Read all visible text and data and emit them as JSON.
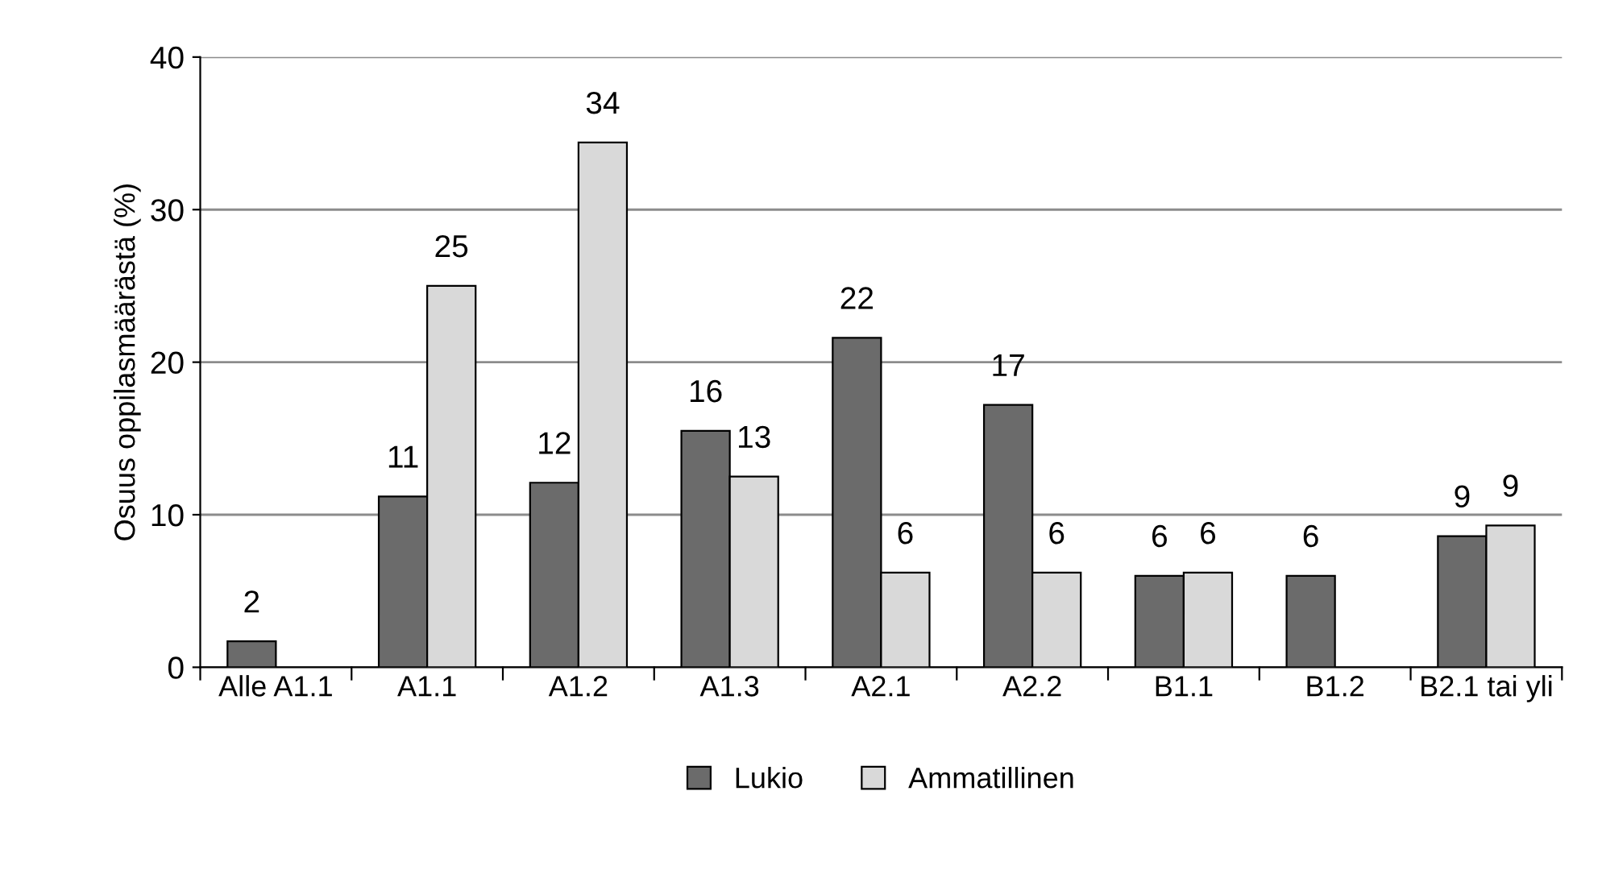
{
  "chart_data": {
    "type": "bar",
    "ylabel": "Osuus oppilasmäärästä (%)",
    "categories": [
      "Alle A1.1",
      "A1.1",
      "A1.2",
      "A1.3",
      "A2.1",
      "A2.2",
      "B1.1",
      "B1.2",
      "B2.1 tai yli"
    ],
    "series": [
      {
        "name": "Lukio",
        "color": "#6b6b6b",
        "values": [
          1.7,
          11.2,
          12.1,
          15.5,
          21.6,
          17.2,
          6.0,
          6.0,
          8.6
        ],
        "value_labels": [
          "2",
          "11",
          "12",
          "16",
          "22",
          "17",
          "6",
          "6",
          "9"
        ]
      },
      {
        "name": "Ammatillinen",
        "color": "#d9d9d9",
        "values": [
          null,
          25.0,
          34.4,
          12.5,
          6.2,
          6.2,
          6.2,
          null,
          9.3
        ],
        "value_labels": [
          null,
          "25",
          "34",
          "13",
          "6",
          "6",
          "6",
          null,
          "9"
        ]
      }
    ],
    "ylim": [
      0,
      40
    ],
    "yticks": [
      0,
      10,
      20,
      30,
      40
    ],
    "grid": "y",
    "legend": "bottom"
  }
}
